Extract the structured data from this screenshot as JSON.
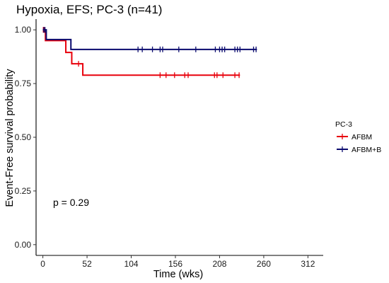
{
  "chart_data": {
    "type": "line",
    "subtype": "kaplan-meier step curve",
    "title": "Hypoxia,  EFS; PC-3 (n=41)",
    "xlabel": "Time (wks)",
    "ylabel": "Event-Free survival probability",
    "xlim": [
      -8,
      330
    ],
    "ylim": [
      -0.05,
      1.05
    ],
    "x_ticks": [
      0,
      52,
      104,
      156,
      208,
      260,
      312
    ],
    "x_tick_labels": [
      "0",
      "52",
      "104",
      "156",
      "208",
      "260",
      "312"
    ],
    "y_ticks": [
      0,
      0.25,
      0.5,
      0.75,
      1
    ],
    "y_tick_labels": [
      "0.00",
      "0.25",
      "0.50",
      "0.75",
      "1.00"
    ],
    "grid": false,
    "legend": {
      "title": "PC-3",
      "position": "right"
    },
    "annotation": "p = 0.29",
    "series": [
      {
        "name": "AFBM",
        "color": "#e8000b",
        "steps": [
          [
            0,
            1.0
          ],
          [
            3,
            0.95
          ],
          [
            27,
            0.895
          ],
          [
            34,
            0.842
          ],
          [
            47,
            0.789
          ],
          [
            232,
            0.789
          ]
        ],
        "censor_times": [
          0.5,
          1.5,
          42,
          138,
          145,
          155,
          167,
          171,
          202,
          205,
          212,
          226,
          231
        ]
      },
      {
        "name": "AFBM+B",
        "color": "#0a0a6e",
        "steps": [
          [
            0,
            1.0
          ],
          [
            4,
            0.955
          ],
          [
            33,
            0.909
          ],
          [
            252,
            0.909
          ]
        ],
        "censor_times": [
          1,
          2.5,
          112,
          117,
          129,
          138,
          141,
          160,
          180,
          203,
          208,
          211,
          214,
          226,
          229,
          232,
          248,
          251
        ]
      }
    ]
  }
}
